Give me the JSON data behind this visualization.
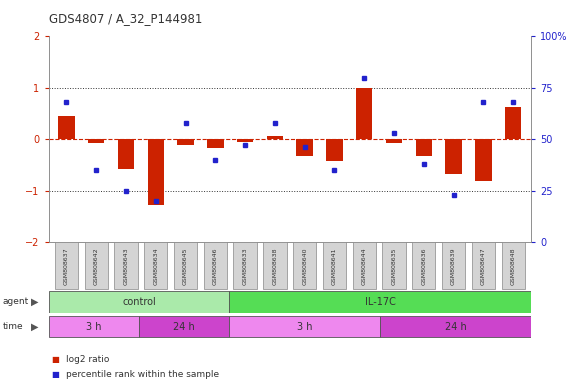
{
  "title": "GDS4807 / A_32_P144981",
  "samples": [
    "GSM808637",
    "GSM808642",
    "GSM808643",
    "GSM808634",
    "GSM808645",
    "GSM808646",
    "GSM808633",
    "GSM808638",
    "GSM808640",
    "GSM808641",
    "GSM808644",
    "GSM808635",
    "GSM808636",
    "GSM808639",
    "GSM808647",
    "GSM808648"
  ],
  "log2_ratio": [
    0.45,
    -0.08,
    -0.58,
    -1.28,
    -0.12,
    -0.18,
    -0.05,
    0.06,
    -0.32,
    -0.42,
    1.0,
    -0.08,
    -0.32,
    -0.68,
    -0.82,
    0.62
  ],
  "percentile_pct": [
    68,
    35,
    25,
    20,
    58,
    40,
    47,
    58,
    46,
    35,
    80,
    53,
    38,
    23,
    68,
    68
  ],
  "ylim": [
    -2,
    2
  ],
  "yticks_left": [
    -2,
    -1,
    0,
    1,
    2
  ],
  "yticks_right_vals": [
    0,
    25,
    50,
    75,
    100
  ],
  "yticks_right_labels": [
    "0",
    "25",
    "50",
    "75",
    "100%"
  ],
  "bar_color": "#cc2200",
  "dot_color": "#2222cc",
  "hline_color": "#cc2200",
  "dotted_color": "#333333",
  "agent_groups": [
    {
      "label": "control",
      "start": 0,
      "end": 6,
      "color": "#aaeaaa"
    },
    {
      "label": "IL-17C",
      "start": 6,
      "end": 16,
      "color": "#55dd55"
    }
  ],
  "time_groups": [
    {
      "label": "3 h",
      "start": 0,
      "end": 3,
      "color": "#ee88ee"
    },
    {
      "label": "24 h",
      "start": 3,
      "end": 6,
      "color": "#cc44cc"
    },
    {
      "label": "3 h",
      "start": 6,
      "end": 11,
      "color": "#ee88ee"
    },
    {
      "label": "24 h",
      "start": 11,
      "end": 16,
      "color": "#cc44cc"
    }
  ],
  "legend_items": [
    {
      "label": "log2 ratio",
      "color": "#cc2200"
    },
    {
      "label": "percentile rank within the sample",
      "color": "#2222cc"
    }
  ],
  "bg_color": "#ffffff"
}
